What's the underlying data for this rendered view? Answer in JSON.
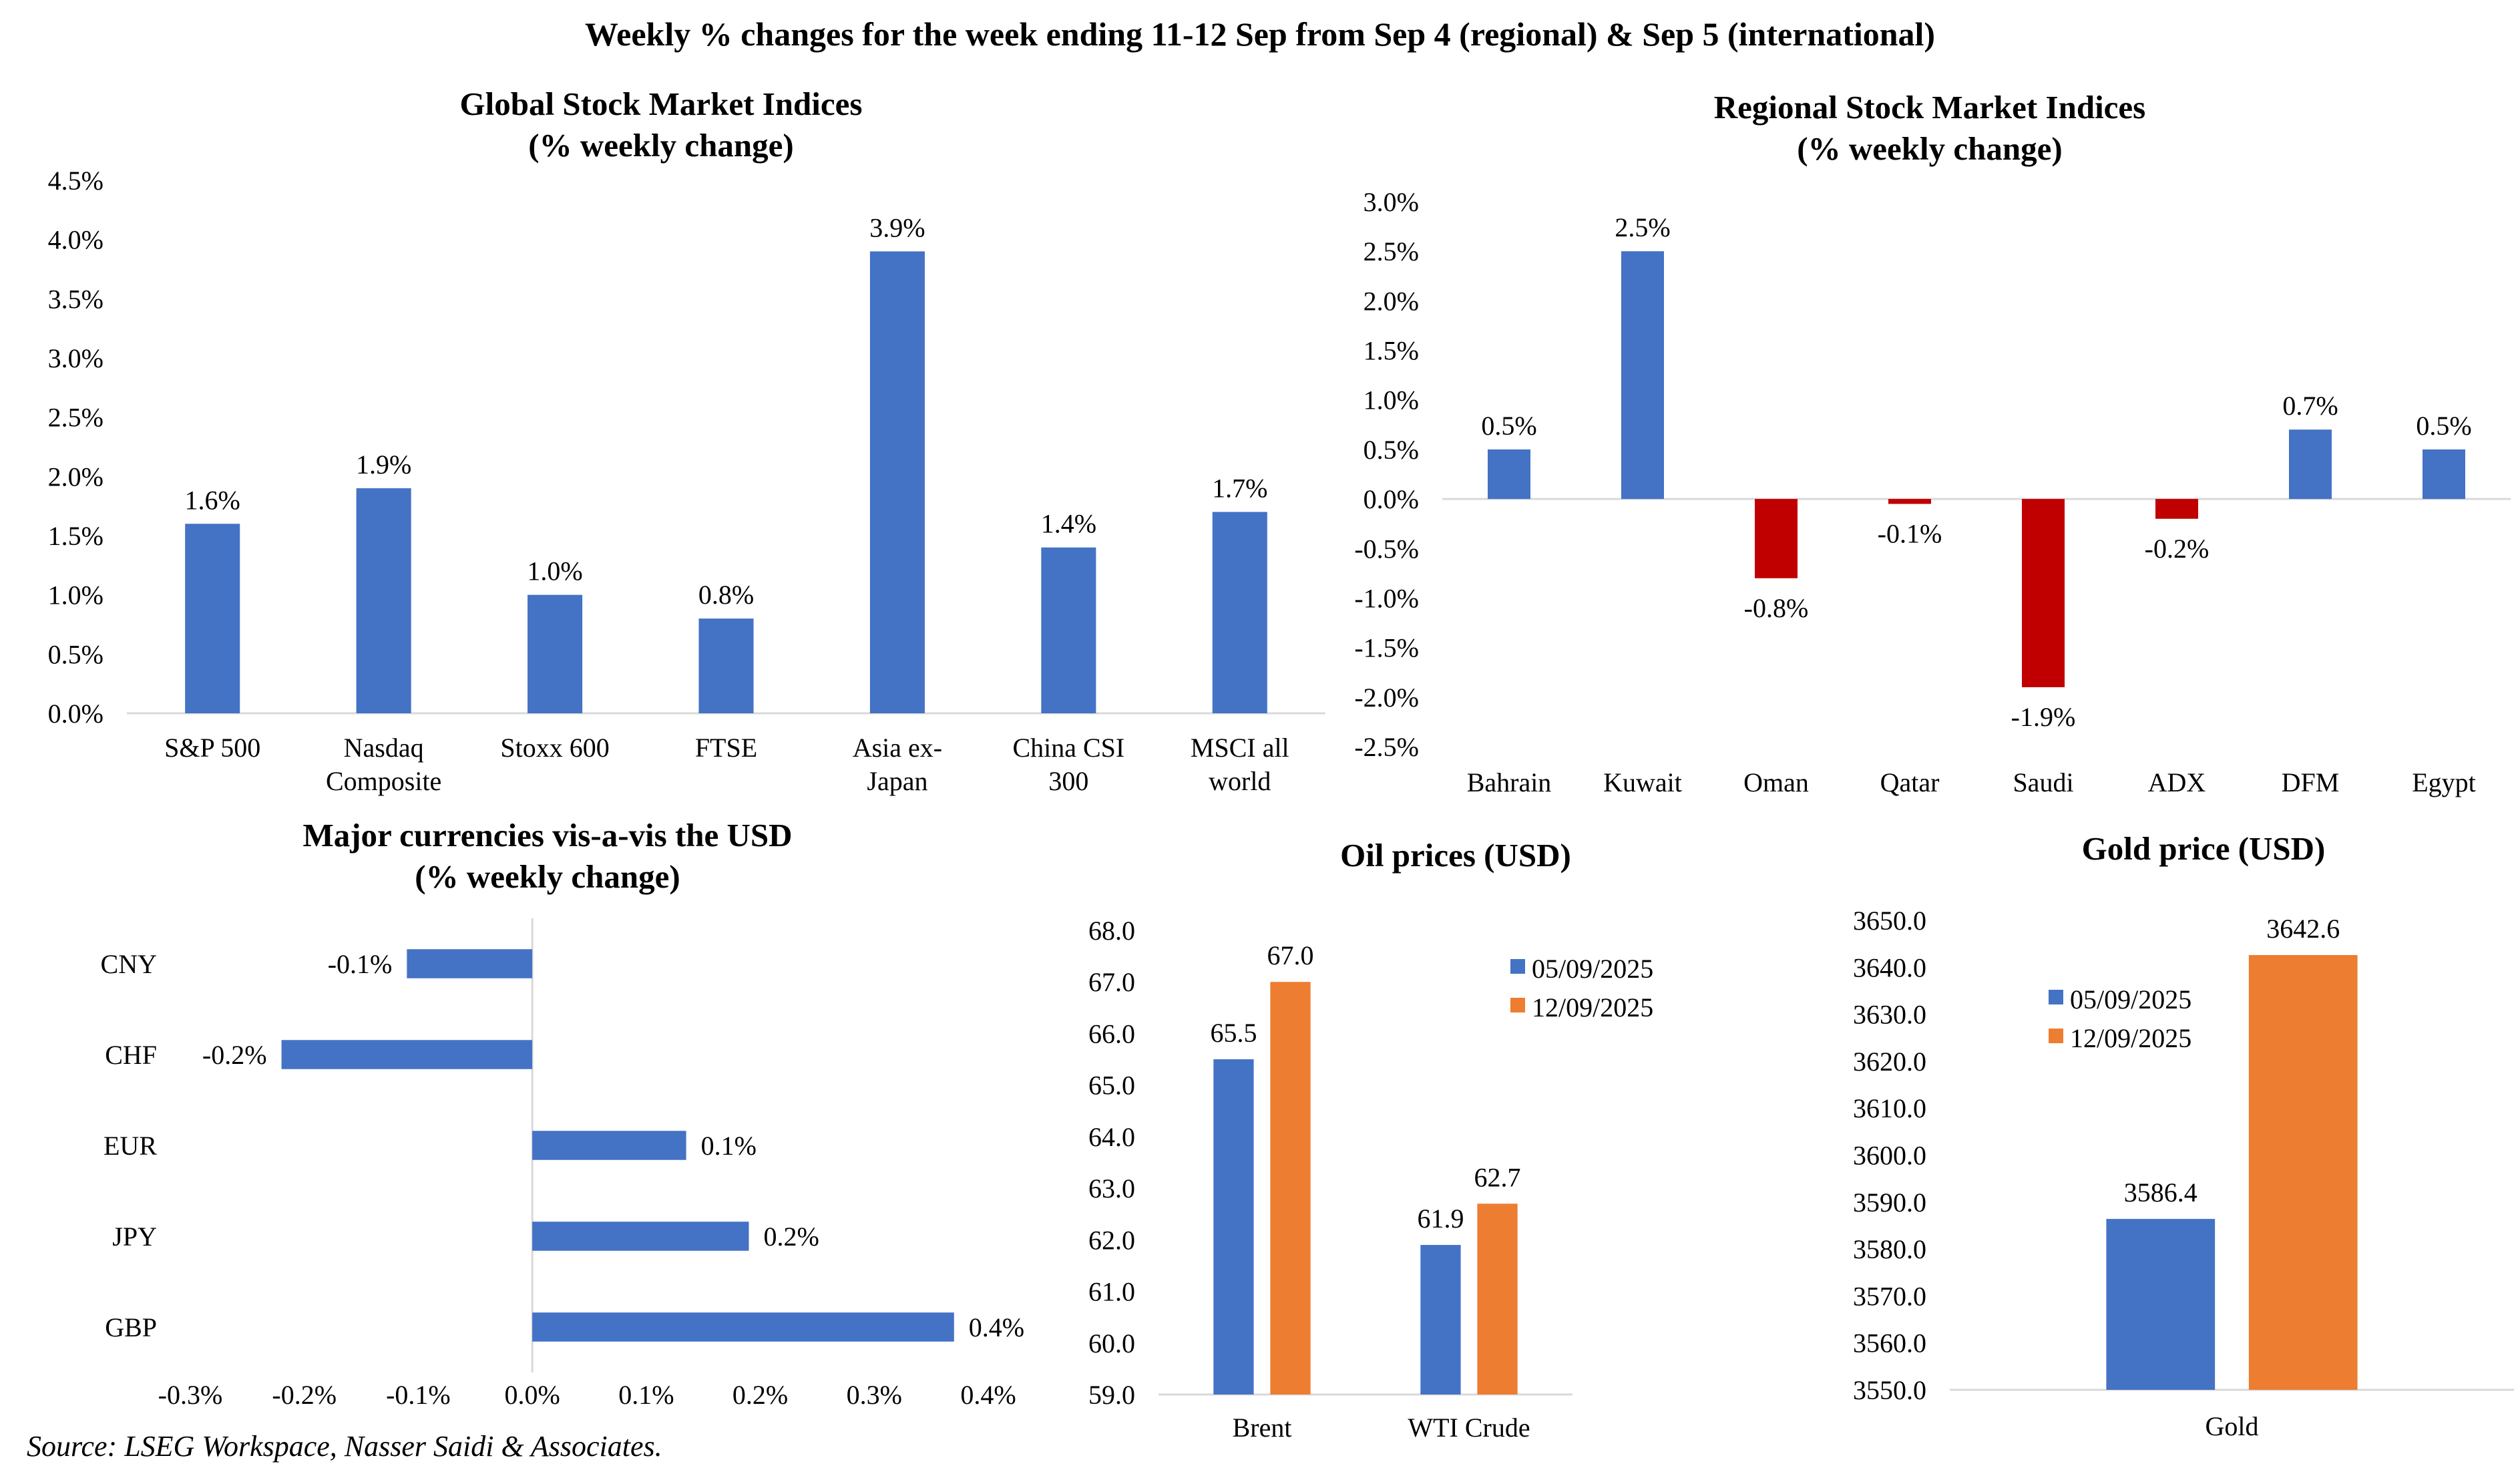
{
  "main_title": "Weekly % changes for the week ending 11-12 Sep from Sep 4 (regional) & Sep 5 (international)",
  "source_note": "Source: LSEG Workspace, Nasser Saidi & Associates.",
  "colors": {
    "blue": "#4472C4",
    "orange": "#ED7D31",
    "red": "#C00000",
    "axis": "#D9D9D9"
  },
  "chart_data": [
    {
      "id": "global",
      "type": "bar",
      "title_lines": [
        "Global Stock Market Indices",
        "(% weekly change)"
      ],
      "categories": [
        [
          "S&P 500"
        ],
        [
          "Nasdaq",
          "Composite"
        ],
        [
          "Stoxx 600"
        ],
        [
          "FTSE"
        ],
        [
          "Asia ex-",
          "Japan"
        ],
        [
          "China CSI",
          "300"
        ],
        [
          "MSCI all",
          "world"
        ]
      ],
      "values": [
        1.6,
        1.9,
        1.0,
        0.8,
        3.9,
        1.4,
        1.7
      ],
      "data_labels": [
        "1.6%",
        "1.9%",
        "1.0%",
        "0.8%",
        "3.9%",
        "1.4%",
        "1.7%"
      ],
      "ylim": [
        0,
        4.5
      ],
      "yticks": [
        "0.0%",
        "0.5%",
        "1.0%",
        "1.5%",
        "2.0%",
        "2.5%",
        "3.0%",
        "3.5%",
        "4.0%",
        "4.5%"
      ],
      "grid": false
    },
    {
      "id": "regional",
      "type": "bar",
      "title_lines": [
        "Regional Stock Market Indices",
        "(% weekly change)"
      ],
      "categories": [
        [
          "Bahrain"
        ],
        [
          "Kuwait"
        ],
        [
          "Oman"
        ],
        [
          "Qatar"
        ],
        [
          "Saudi"
        ],
        [
          "ADX"
        ],
        [
          "DFM"
        ],
        [
          "Egypt"
        ]
      ],
      "values": [
        0.5,
        2.5,
        -0.8,
        -0.05,
        -1.9,
        -0.2,
        0.7,
        0.5
      ],
      "data_labels": [
        "0.5%",
        "2.5%",
        "-0.8%",
        "-0.1%",
        "-1.9%",
        "-0.2%",
        "0.7%",
        "0.5%"
      ],
      "ylim": [
        -2.5,
        3.0
      ],
      "yticks": [
        "-2.5%",
        "-2.0%",
        "-1.5%",
        "-1.0%",
        "-0.5%",
        "0.0%",
        "0.5%",
        "1.0%",
        "1.5%",
        "2.0%",
        "2.5%",
        "3.0%"
      ],
      "negative_color": "red",
      "grid": false
    },
    {
      "id": "currencies",
      "type": "bar",
      "orientation": "horizontal",
      "title_lines": [
        "Major currencies vis-a-vis the USD",
        "(% weekly change)"
      ],
      "categories": [
        "CNY",
        "CHF",
        "EUR",
        "JPY",
        "GBP"
      ],
      "values": [
        -0.11,
        -0.22,
        0.135,
        0.19,
        0.37
      ],
      "data_labels": [
        "-0.1%",
        "-0.2%",
        "0.1%",
        "0.2%",
        "0.4%"
      ],
      "xlim": [
        -0.3,
        0.4
      ],
      "xticks": [
        "-0.3%",
        "-0.2%",
        "-0.1%",
        "0.0%",
        "0.1%",
        "0.2%",
        "0.3%",
        "0.4%"
      ],
      "grid": false
    },
    {
      "id": "oil",
      "type": "bar",
      "title_lines": [
        "Oil prices (USD)"
      ],
      "categories": [
        "Brent",
        "WTI Crude"
      ],
      "series": [
        {
          "name": "05/09/2025",
          "color": "blue",
          "values": [
            65.5,
            61.9
          ],
          "labels": [
            "65.5",
            "61.9"
          ]
        },
        {
          "name": "12/09/2025",
          "color": "orange",
          "values": [
            67.0,
            62.7
          ],
          "labels": [
            "67.0",
            "62.7"
          ]
        }
      ],
      "ylim": [
        59,
        68
      ],
      "yticks": [
        "59.0",
        "60.0",
        "61.0",
        "62.0",
        "63.0",
        "64.0",
        "65.0",
        "66.0",
        "67.0",
        "68.0"
      ],
      "legend": "top-right",
      "grid": false
    },
    {
      "id": "gold",
      "type": "bar",
      "title_lines": [
        "Gold price (USD)"
      ],
      "categories": [
        "Gold"
      ],
      "series": [
        {
          "name": "05/09/2025",
          "color": "blue",
          "values": [
            3586.4
          ],
          "labels": [
            "3586.4"
          ]
        },
        {
          "name": "12/09/2025",
          "color": "orange",
          "values": [
            3642.6
          ],
          "labels": [
            "3642.6"
          ]
        }
      ],
      "ylim": [
        3550,
        3650
      ],
      "yticks": [
        "3550.0",
        "3560.0",
        "3570.0",
        "3580.0",
        "3590.0",
        "3600.0",
        "3610.0",
        "3620.0",
        "3630.0",
        "3640.0",
        "3650.0"
      ],
      "legend": "top-left",
      "grid": false
    }
  ]
}
